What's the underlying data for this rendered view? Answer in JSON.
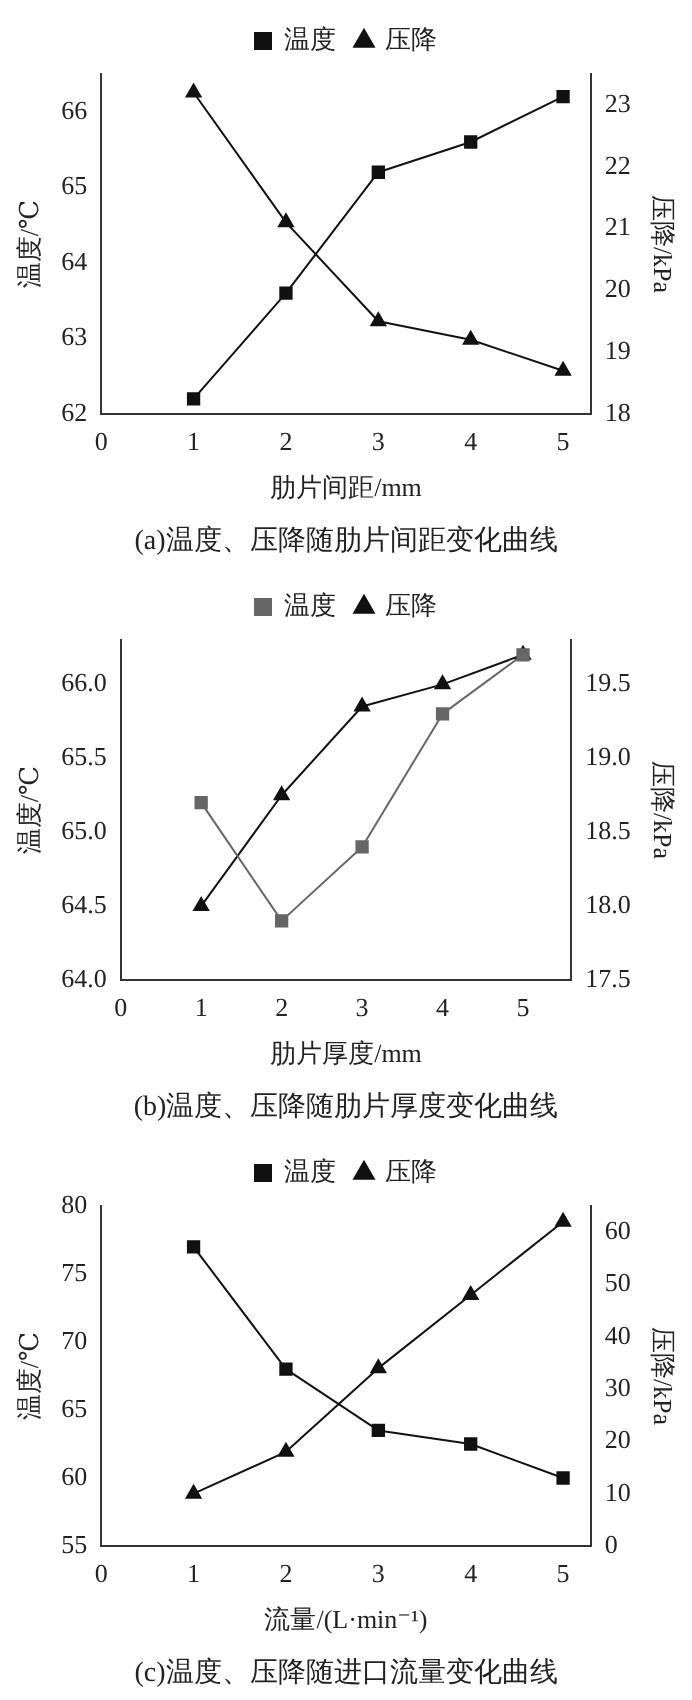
{
  "chart_data": [
    {
      "type": "line",
      "title": "(a)温度、压降随肋片间距变化曲线",
      "xlabel": "肋片间距/mm",
      "ylabel": "温度/℃",
      "y2label": "压降/kPa",
      "x": [
        1,
        2,
        3,
        4,
        5
      ],
      "series": [
        {
          "name": "温度",
          "color": "#111111",
          "marker": "square",
          "values": [
            62.2,
            63.6,
            65.2,
            65.6,
            66.2
          ]
        },
        {
          "name": "压降",
          "color": "#111111",
          "marker": "triangle",
          "axis": "y2",
          "values": [
            23.2,
            21.1,
            19.5,
            19.2,
            18.7
          ]
        }
      ],
      "xlim": [
        0,
        5.3
      ],
      "xticks": [
        0,
        1,
        2,
        3,
        4,
        5
      ],
      "ylim": [
        62,
        66.5
      ],
      "yticks": [
        62,
        63,
        64,
        65,
        66
      ],
      "y2lim": [
        18,
        23.5
      ],
      "y2ticks": [
        18,
        19,
        20,
        21,
        22,
        23
      ],
      "legend": "top",
      "grid": false
    },
    {
      "type": "line",
      "title": "(b)温度、压降随肋片厚度变化曲线",
      "xlabel": "肋片厚度/mm",
      "ylabel": "温度/℃",
      "y2label": "压降/kPa",
      "x": [
        1,
        2,
        3,
        4,
        5
      ],
      "series": [
        {
          "name": "温度",
          "color": "#666666",
          "marker": "square",
          "values": [
            65.2,
            64.4,
            64.9,
            65.8,
            66.2
          ]
        },
        {
          "name": "压降",
          "color": "#111111",
          "marker": "triangle",
          "axis": "y2",
          "values": [
            18.0,
            18.75,
            19.35,
            19.5,
            19.7
          ]
        }
      ],
      "xlim": [
        0,
        5.6
      ],
      "xticks": [
        0,
        1,
        2,
        3,
        4,
        5
      ],
      "ylim": [
        64,
        66.3
      ],
      "yticks": [
        {
          "value": 64,
          "label": "64.0"
        },
        {
          "value": 64.5,
          "label": "64.5"
        },
        {
          "value": 65,
          "label": "65.0"
        },
        {
          "value": 65.5,
          "label": "65.5"
        },
        {
          "value": 66,
          "label": "66.0"
        }
      ],
      "y2lim": [
        17.5,
        19.8
      ],
      "y2ticks": [
        {
          "value": 17.5,
          "label": "17.5"
        },
        {
          "value": 18,
          "label": "18.0"
        },
        {
          "value": 18.5,
          "label": "18.5"
        },
        {
          "value": 19,
          "label": "19.0"
        },
        {
          "value": 19.5,
          "label": "19.5"
        }
      ],
      "legend": "top",
      "grid": false
    },
    {
      "type": "line",
      "title": "(c)温度、压降随进口流量变化曲线",
      "xlabel": "流量/(L·min⁻¹)",
      "ylabel": "温度/℃",
      "y2label": "压降/kPa",
      "x": [
        1,
        2,
        3,
        4,
        5
      ],
      "series": [
        {
          "name": "温度",
          "color": "#111111",
          "marker": "square",
          "values": [
            77,
            68,
            63.5,
            62.5,
            60
          ]
        },
        {
          "name": "压降",
          "color": "#111111",
          "marker": "triangle",
          "axis": "y2",
          "values": [
            10,
            18,
            34,
            48,
            62
          ]
        }
      ],
      "xlim": [
        0,
        5.3
      ],
      "xticks": [
        0,
        1,
        2,
        3,
        4,
        5
      ],
      "ylim": [
        55,
        80
      ],
      "yticks": [
        55,
        60,
        65,
        70,
        75,
        80
      ],
      "y2lim": [
        0,
        65
      ],
      "y2ticks": [
        0,
        10,
        20,
        30,
        40,
        50,
        60
      ],
      "legend": "top",
      "grid": false
    }
  ]
}
